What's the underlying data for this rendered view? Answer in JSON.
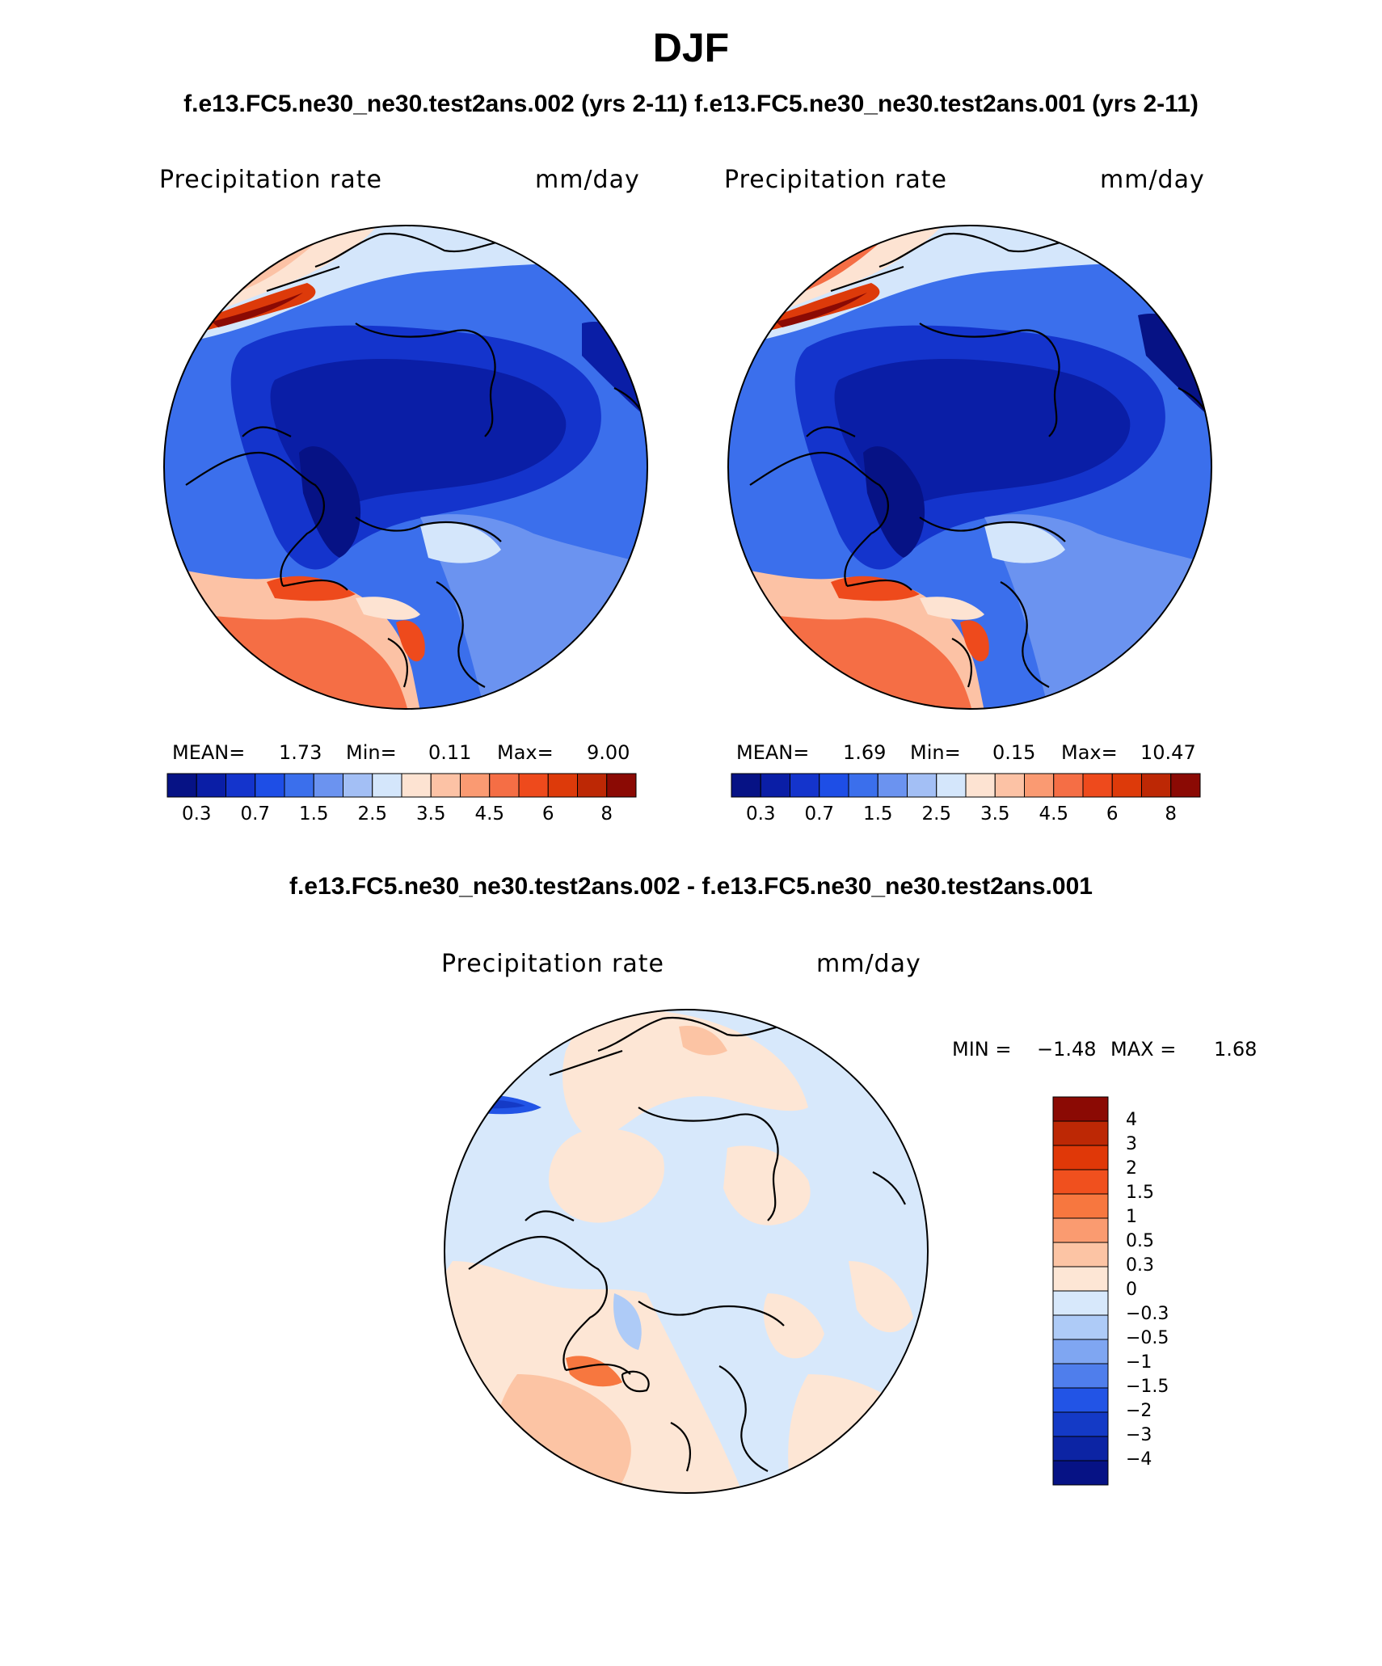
{
  "title": "DJF",
  "case_titles": "f.e13.FC5.ne30_ne30.test2ans.002 (yrs 2-11) f.e13.FC5.ne30_ne30.test2ans.001 (yrs 2-11)",
  "diff_title": "f.e13.FC5.ne30_ne30.test2ans.002 - f.e13.FC5.ne30_ne30.test2ans.001",
  "panels": [
    {
      "variable": "Precipitation rate",
      "units": "mm/day",
      "mean_label": "MEAN=",
      "mean": "1.73",
      "min_label": "Min=",
      "min": "0.11",
      "max_label": "Max=",
      "max": "9.00"
    },
    {
      "variable": "Precipitation rate",
      "units": "mm/day",
      "mean_label": "MEAN=",
      "mean": "1.69",
      "min_label": "Min=",
      "min": "0.15",
      "max_label": "Max=",
      "max": "10.47"
    }
  ],
  "diff_panel": {
    "variable": "Precipitation rate",
    "units": "mm/day",
    "min_label": "MIN =",
    "min": "−1.48",
    "max_label": "MAX =",
    "max": "1.68"
  },
  "colorbar_main": {
    "colors": [
      "#061285",
      "#0a1ea6",
      "#1434cc",
      "#1e4ee6",
      "#3b6fec",
      "#6b93f0",
      "#a3bff5",
      "#d4e6fb",
      "#fde3d2",
      "#fcc2a5",
      "#fa9a72",
      "#f56e45",
      "#ee4a1c",
      "#dd3a0a",
      "#bd2805",
      "#8b0a04"
    ],
    "labels": [
      "0.3",
      "0.7",
      "1.5",
      "2.5",
      "3.5",
      "4.5",
      "6",
      "8"
    ]
  },
  "colorbar_diff": {
    "colors": [
      "#8b0a04",
      "#bd2805",
      "#e03808",
      "#f0501e",
      "#f7773f",
      "#fa9b70",
      "#fcc4a4",
      "#fde6d5",
      "#d7e8fb",
      "#aecbf7",
      "#7fa6f2",
      "#4f7eec",
      "#2254e6",
      "#143ac6",
      "#0c24a4",
      "#061285"
    ],
    "labels": [
      "4",
      "3",
      "2",
      "1.5",
      "1",
      "0.5",
      "0.3",
      "0",
      "−0.3",
      "−0.5",
      "−1",
      "−1.5",
      "−2",
      "−3",
      "−4"
    ]
  },
  "colors": {
    "deep_blue": "#0a1ea6",
    "mid_blue": "#3b6fec",
    "light_blue": "#d4e6fb",
    "light_red": "#fcc2a5",
    "red": "#f56e45"
  }
}
